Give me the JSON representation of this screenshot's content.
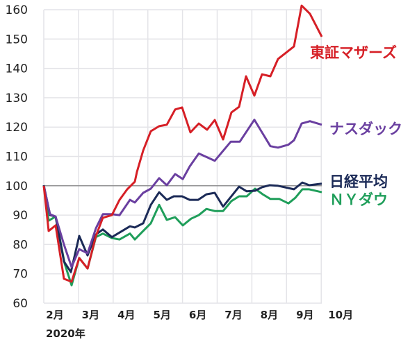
{
  "chart_data": {
    "type": "line",
    "title": "",
    "xlabel": "",
    "ylabel": "",
    "year_label": "2020年",
    "ylim": [
      60,
      160
    ],
    "yticks": [
      60,
      70,
      80,
      90,
      100,
      110,
      120,
      130,
      140,
      150,
      160
    ],
    "xlim": [
      1.68,
      9.68
    ],
    "xticks": [
      {
        "value": 2,
        "label": "2月"
      },
      {
        "value": 3,
        "label": "3月"
      },
      {
        "value": 4,
        "label": "4月"
      },
      {
        "value": 5,
        "label": "5月"
      },
      {
        "value": 6,
        "label": "6月"
      },
      {
        "value": 7,
        "label": "7月"
      },
      {
        "value": 8,
        "label": "8月"
      },
      {
        "value": 9,
        "label": "9月"
      },
      {
        "value": 10,
        "label": "10月"
      }
    ],
    "grid": true,
    "reference_line": 100,
    "legend": "right, labels next to line ends",
    "series": [
      {
        "name": "東証マザーズ",
        "color": "#d61f26",
        "points": [
          [
            1.68,
            100
          ],
          [
            1.82,
            84.6
          ],
          [
            2.02,
            86.5
          ],
          [
            2.26,
            68.3
          ],
          [
            2.48,
            67.3
          ],
          [
            2.7,
            75.4
          ],
          [
            2.94,
            71.8
          ],
          [
            3.18,
            82.9
          ],
          [
            3.38,
            89.1
          ],
          [
            3.64,
            90
          ],
          [
            3.86,
            95.2
          ],
          [
            4.08,
            98.8
          ],
          [
            4.3,
            101.4
          ],
          [
            4.36,
            104.7
          ],
          [
            4.54,
            112
          ],
          [
            4.76,
            118.6
          ],
          [
            5,
            120.3
          ],
          [
            5.22,
            120.8
          ],
          [
            5.46,
            126
          ],
          [
            5.66,
            126.7
          ],
          [
            5.9,
            118.2
          ],
          [
            6.14,
            121.2
          ],
          [
            6.38,
            119.1
          ],
          [
            6.6,
            122.4
          ],
          [
            6.84,
            115.8
          ],
          [
            7.08,
            125
          ],
          [
            7.3,
            126.9
          ],
          [
            7.5,
            137.3
          ],
          [
            7.74,
            130.7
          ],
          [
            7.96,
            138
          ],
          [
            8.2,
            137.3
          ],
          [
            8.42,
            143.2
          ],
          [
            8.88,
            147.5
          ],
          [
            9.1,
            161.4
          ],
          [
            9.34,
            158.6
          ],
          [
            9.68,
            150.8
          ]
        ]
      },
      {
        "name": "ナスダック",
        "color": "#6a3fa0",
        "points": [
          [
            1.68,
            100
          ],
          [
            1.86,
            90.3
          ],
          [
            2.02,
            89.5
          ],
          [
            2.26,
            80
          ],
          [
            2.48,
            72.3
          ],
          [
            2.7,
            78.4
          ],
          [
            2.94,
            77
          ],
          [
            3.18,
            85.5
          ],
          [
            3.38,
            90.3
          ],
          [
            3.64,
            90.3
          ],
          [
            3.86,
            90
          ],
          [
            4.16,
            95.2
          ],
          [
            4.3,
            94.3
          ],
          [
            4.54,
            97.6
          ],
          [
            4.76,
            99
          ],
          [
            5,
            102.6
          ],
          [
            5.22,
            100.2
          ],
          [
            5.46,
            104
          ],
          [
            5.68,
            102.3
          ],
          [
            5.88,
            106.6
          ],
          [
            6.14,
            111
          ],
          [
            6.6,
            108.5
          ],
          [
            7.06,
            115
          ],
          [
            7.32,
            115
          ],
          [
            7.74,
            122.5
          ],
          [
            8.2,
            113.5
          ],
          [
            8.42,
            113
          ],
          [
            8.72,
            114
          ],
          [
            8.88,
            115.5
          ],
          [
            9.1,
            121.2
          ],
          [
            9.34,
            122
          ],
          [
            9.68,
            120.8
          ]
        ]
      },
      {
        "name": "日経平均",
        "color": "#1b2a57",
        "points": [
          [
            1.68,
            100.2
          ],
          [
            1.86,
            90
          ],
          [
            2.02,
            89.5
          ],
          [
            2.26,
            74.2
          ],
          [
            2.46,
            70.6
          ],
          [
            2.7,
            82.9
          ],
          [
            2.94,
            76.3
          ],
          [
            3.18,
            83.4
          ],
          [
            3.38,
            85.1
          ],
          [
            3.64,
            82.5
          ],
          [
            4.16,
            86.2
          ],
          [
            4.3,
            85.8
          ],
          [
            4.54,
            87.2
          ],
          [
            4.76,
            93.5
          ],
          [
            5,
            97.8
          ],
          [
            5.22,
            95.2
          ],
          [
            5.42,
            96.4
          ],
          [
            5.66,
            96.4
          ],
          [
            5.88,
            95.2
          ],
          [
            6.12,
            95.2
          ],
          [
            6.36,
            97.1
          ],
          [
            6.6,
            97.6
          ],
          [
            6.84,
            92.9
          ],
          [
            7.3,
            99.7
          ],
          [
            7.52,
            98.1
          ],
          [
            7.76,
            98.3
          ],
          [
            7.96,
            99.5
          ],
          [
            8.18,
            100.2
          ],
          [
            8.42,
            100
          ],
          [
            8.88,
            98.8
          ],
          [
            9.12,
            101.1
          ],
          [
            9.32,
            100.2
          ],
          [
            9.68,
            100.7
          ]
        ]
      },
      {
        "name": "ＮＹダウ",
        "color": "#1f9e5a",
        "points": [
          [
            1.68,
            100.2
          ],
          [
            1.82,
            88.1
          ],
          [
            2.02,
            89.5
          ],
          [
            2.28,
            73.5
          ],
          [
            2.48,
            66.1
          ],
          [
            2.7,
            75.4
          ],
          [
            2.94,
            71.8
          ],
          [
            3.18,
            82.5
          ],
          [
            3.38,
            83.7
          ],
          [
            3.64,
            82.2
          ],
          [
            3.86,
            81.7
          ],
          [
            4.16,
            83.7
          ],
          [
            4.3,
            81.7
          ],
          [
            4.54,
            84.6
          ],
          [
            4.76,
            87.2
          ],
          [
            5,
            93.5
          ],
          [
            5.22,
            88.4
          ],
          [
            5.46,
            89.3
          ],
          [
            5.68,
            86.5
          ],
          [
            5.92,
            88.8
          ],
          [
            6.14,
            90
          ],
          [
            6.36,
            92.1
          ],
          [
            6.6,
            91.4
          ],
          [
            6.84,
            91.4
          ],
          [
            7.08,
            94.8
          ],
          [
            7.3,
            96.4
          ],
          [
            7.52,
            96.4
          ],
          [
            7.76,
            99
          ],
          [
            7.98,
            97.1
          ],
          [
            8.2,
            95.5
          ],
          [
            8.46,
            95.5
          ],
          [
            8.72,
            94
          ],
          [
            8.92,
            95.9
          ],
          [
            9.12,
            98.8
          ],
          [
            9.32,
            98.8
          ],
          [
            9.68,
            97.8
          ]
        ]
      }
    ]
  }
}
